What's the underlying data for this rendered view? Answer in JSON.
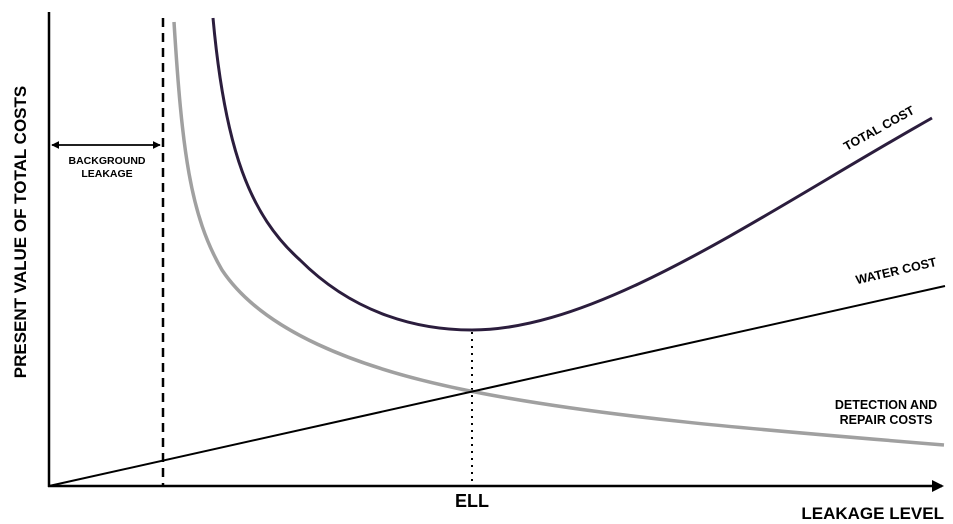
{
  "diagram": {
    "y_axis_label": "PRESENT VALUE OF TOTAL COSTS",
    "x_axis_label": "LEAKAGE LEVEL",
    "ell_label": "ELL",
    "background_leakage_label": [
      "BACKGROUND",
      "LEAKAGE"
    ],
    "curves": {
      "total_cost": "TOTAL COST",
      "water_cost": "WATER COST",
      "detection_repair": [
        "DETECTION AND",
        "REPAIR COSTS"
      ]
    },
    "colors": {
      "total_cost": "#2b1d3d",
      "detection_repair": "#a0a0a0",
      "water_cost": "#000000",
      "axes": "#000000"
    }
  }
}
